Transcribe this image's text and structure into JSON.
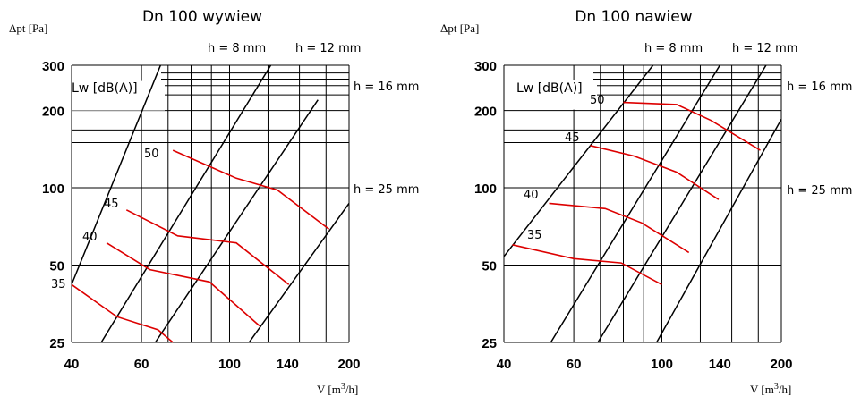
{
  "chart_data": [
    {
      "type": "line",
      "title": "Dn 100 wywiew",
      "ylabel": "Δpt [Pa]",
      "xlabel_main": "V [m",
      "xlabel_sup": "3",
      "xlabel_tail": "/h]",
      "x_scale": "log",
      "y_scale": "log",
      "xlim": [
        40,
        200
      ],
      "ylim": [
        25,
        300
      ],
      "x_ticks": [
        40,
        60,
        100,
        140,
        200
      ],
      "y_ticks": [
        25,
        50,
        100,
        200,
        300
      ],
      "grid": true,
      "lw_label": "Lw [dB(A)]",
      "damper_lines": [
        {
          "label": "h = 8 mm",
          "points": [
            [
              40,
              42
            ],
            [
              67,
              300
            ]
          ]
        },
        {
          "label": "h = 12 mm",
          "points": [
            [
              47.5,
              25
            ],
            [
              127,
              300
            ]
          ]
        },
        {
          "label": "h = 16 mm",
          "points": [
            [
              65,
              25
            ],
            [
              167,
              220
            ]
          ]
        },
        {
          "label": "h = 25 mm",
          "points": [
            [
              112,
              25
            ],
            [
              200,
              87
            ]
          ]
        }
      ],
      "series": [
        {
          "name": "35",
          "points": [
            [
              40,
              42
            ],
            [
              52,
              31.5
            ],
            [
              66,
              28
            ],
            [
              72,
              25
            ]
          ]
        },
        {
          "name": "40",
          "points": [
            [
              49,
              61
            ],
            [
              63,
              48
            ],
            [
              89,
              43
            ],
            [
              119,
              29
            ]
          ]
        },
        {
          "name": "45",
          "points": [
            [
              55,
              82
            ],
            [
              74,
              65
            ],
            [
              104,
              61
            ],
            [
              141,
              42
            ]
          ]
        },
        {
          "name": "50",
          "points": [
            [
              72,
              140
            ],
            [
              104,
              109
            ],
            [
              132,
              98
            ],
            [
              178,
              69
            ]
          ]
        }
      ]
    },
    {
      "type": "line",
      "title": "Dn 100 nawiew",
      "ylabel": "Δpt [Pa]",
      "xlabel_main": "V [m",
      "xlabel_sup": "3",
      "xlabel_tail": "/h]",
      "x_scale": "log",
      "y_scale": "log",
      "xlim": [
        40,
        200
      ],
      "ylim": [
        25,
        300
      ],
      "x_ticks": [
        40,
        60,
        100,
        140,
        200
      ],
      "y_ticks": [
        25,
        50,
        100,
        200,
        300
      ],
      "grid": true,
      "lw_label": "Lw [dB(A)]",
      "damper_lines": [
        {
          "label": "h = 8 mm",
          "points": [
            [
              40,
              54
            ],
            [
              95,
              300
            ]
          ]
        },
        {
          "label": "h = 12 mm",
          "points": [
            [
              52.5,
              25
            ],
            [
              140,
              300
            ]
          ]
        },
        {
          "label": "h = 16 mm",
          "points": [
            [
              69,
              25
            ],
            [
              183,
              300
            ]
          ]
        },
        {
          "label": "h = 25 mm",
          "points": [
            [
              97,
              25
            ],
            [
              200,
              185
            ]
          ]
        }
      ],
      "series": [
        {
          "name": "35",
          "points": [
            [
              42,
              60
            ],
            [
              60,
              53
            ],
            [
              79,
              51
            ],
            [
              100,
              42
            ]
          ]
        },
        {
          "name": "40",
          "points": [
            [
              52,
              87
            ],
            [
              72,
              83
            ],
            [
              89,
              73
            ],
            [
              117,
              56
            ]
          ]
        },
        {
          "name": "45",
          "points": [
            [
              66,
              146
            ],
            [
              85,
              133
            ],
            [
              109,
              115
            ],
            [
              139,
              90
            ]
          ]
        },
        {
          "name": "50",
          "points": [
            [
              80,
              215
            ],
            [
              109,
              211
            ],
            [
              133,
              183
            ],
            [
              177,
              140
            ]
          ]
        }
      ]
    }
  ]
}
